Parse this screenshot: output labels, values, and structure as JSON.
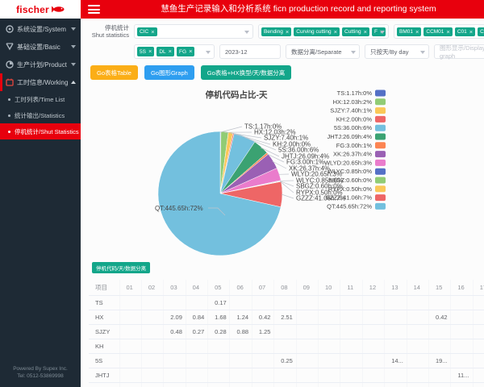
{
  "logo": {
    "brand": "fischer"
  },
  "header": {
    "title": "慧鱼生产记录输入和分析系统 ficn production record and reporting system"
  },
  "sidebar": {
    "items": [
      {
        "label": "系统设置/System",
        "icon": "gear-icon"
      },
      {
        "label": "基础设置/Basic",
        "icon": "trophy-icon"
      },
      {
        "label": "生产计划/Product Plan",
        "icon": "pie-icon"
      },
      {
        "label": "工时信息/Working Time",
        "icon": "calendar-icon",
        "children": [
          "工时列表/Time List",
          "统计输出/Statistics",
          "停机统计/Shut Statistics"
        ],
        "active_child": "停机统计/Shut Statistics"
      }
    ],
    "footer": {
      "line1": "Powered By Supex Inc.",
      "line2": "Tel: 0512-53869998"
    }
  },
  "filters": {
    "label_cn": "停机统计",
    "label_en": "Shut statistics",
    "select1_tags": [
      "CIC"
    ],
    "select2_tags": [
      "Bending",
      "Curving cutting",
      "Cutting",
      "F"
    ],
    "select3_tags": [
      "BM01",
      "CCM01",
      "C01",
      "C02"
    ],
    "select4_tags": [
      "5S",
      "DL",
      "FG"
    ],
    "date_value": "2023-12",
    "separate_select": "数据分离/Separate",
    "byday_select": "只按天/By day",
    "graph_input_placeholder": "图形显示/Display graph"
  },
  "buttons": {
    "go_table": "Go表格Table",
    "go_graph": "Go图形Graph",
    "go_table_hx": "Go表格+HX换型/天/数据分离",
    "table_section": "停机代码/天/数据分离"
  },
  "colors": {
    "brand_red": "#e8000d",
    "sidebar_bg": "#1e2a35",
    "tag_teal": "#13a68a",
    "btn_yellow": "#fbae17",
    "btn_blue": "#2e9ef0"
  },
  "chart_data": {
    "type": "pie",
    "title": "停机代码占比-天",
    "legend_position": "right",
    "value_unit": "h",
    "series": [
      {
        "name": "TS",
        "hours": 1.17,
        "percent": 0,
        "color": "#5470c6"
      },
      {
        "name": "HX",
        "hours": 12.03,
        "percent": 2,
        "color": "#91cc75"
      },
      {
        "name": "SJZY",
        "hours": 7.4,
        "percent": 1,
        "color": "#fac858"
      },
      {
        "name": "KH",
        "hours": 2.0,
        "percent": 0,
        "color": "#ee6666"
      },
      {
        "name": "5S",
        "hours": 36.0,
        "percent": 6,
        "color": "#73c0de"
      },
      {
        "name": "JHTJ",
        "hours": 26.09,
        "percent": 4,
        "color": "#3ba272"
      },
      {
        "name": "FG",
        "hours": 3.0,
        "percent": 1,
        "color": "#fc8452"
      },
      {
        "name": "XK",
        "hours": 26.37,
        "percent": 4,
        "color": "#9a60b4"
      },
      {
        "name": "WLYD",
        "hours": 20.65,
        "percent": 3,
        "color": "#ea7ccc"
      },
      {
        "name": "WLYC",
        "hours": 0.85,
        "percent": 0,
        "color": "#5470c6"
      },
      {
        "name": "SBGZ",
        "hours": 0.6,
        "percent": 0,
        "color": "#91cc75"
      },
      {
        "name": "RYPX",
        "hours": 0.5,
        "percent": 0,
        "color": "#fac858"
      },
      {
        "name": "GZZZ",
        "hours": 41.06,
        "percent": 7,
        "color": "#ee6666"
      },
      {
        "name": "QT",
        "hours": 445.65,
        "percent": 72,
        "color": "#73c0de"
      }
    ]
  },
  "table": {
    "columns": [
      "项目",
      "01",
      "02",
      "03",
      "04",
      "05",
      "06",
      "07",
      "08",
      "09",
      "10",
      "11",
      "12",
      "13",
      "14",
      "15",
      "16",
      "17"
    ],
    "rows": [
      {
        "name": "TS",
        "values": {
          "05": "0.17"
        }
      },
      {
        "name": "HX",
        "values": {
          "03": "2.09",
          "04": "0.84",
          "05": "1.68",
          "06": "1.24",
          "07": "0.42",
          "08": "2.51",
          "15": "0.42"
        }
      },
      {
        "name": "SJZY",
        "values": {
          "03": "0.48",
          "04": "0.27",
          "05": "0.28",
          "06": "0.88",
          "07": "1.25"
        }
      },
      {
        "name": "KH",
        "values": {}
      },
      {
        "name": "5S",
        "values": {
          "08": "0.25",
          "13": "14...",
          "15": "19..."
        }
      },
      {
        "name": "JHTJ",
        "values": {
          "16": "11..."
        }
      },
      {
        "name": "DL",
        "values": {}
      }
    ]
  }
}
